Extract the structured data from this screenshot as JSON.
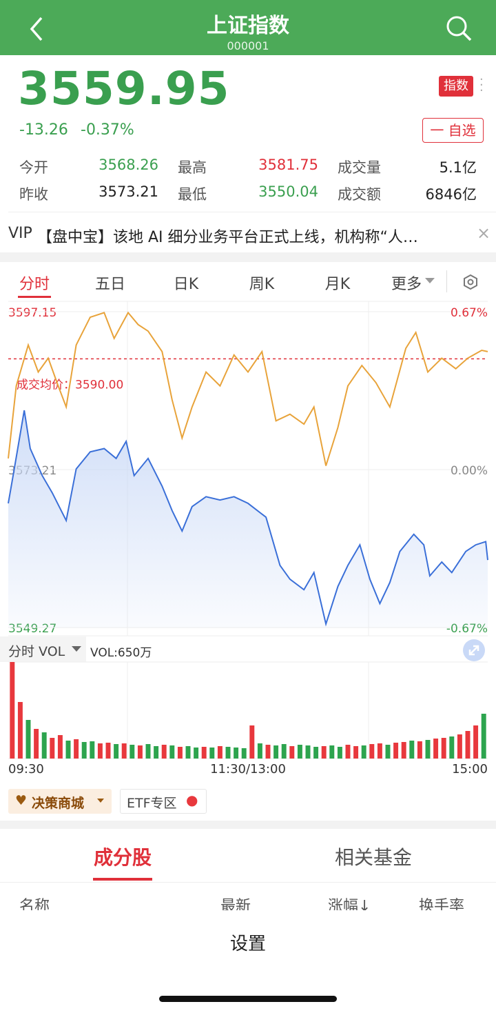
{
  "header": {
    "title": "上证指数",
    "code": "000001"
  },
  "quote": {
    "price": "3559.95",
    "change": "-13.26",
    "change_pct": "-0.37%",
    "badge": "指数",
    "watch_button": "一 自选"
  },
  "stats": [
    [
      "今开",
      "3568.26",
      "最高",
      "3581.75",
      "成交量",
      "5.1亿"
    ],
    [
      "昨收",
      "3573.21",
      "最低",
      "3550.04",
      "成交额",
      "6846亿"
    ]
  ],
  "news": {
    "tag": "VIP",
    "text": "【盘中宝】该地 AI 细分业务平台正式上线，机构称“人…"
  },
  "tabs": [
    "分时",
    "五日",
    "日K",
    "周K",
    "月K",
    "更多"
  ],
  "chart_data": {
    "type": "line",
    "series": [
      {
        "color": "#e8a33a",
        "x": [
          0,
          4,
          10,
          15,
          20,
          25,
          29,
          34,
          41,
          48,
          53,
          60,
          65,
          70,
          77,
          82,
          87,
          92,
          99,
          106,
          113,
          120,
          127,
          134,
          141,
          148,
          153,
          159,
          165,
          170,
          177,
          184,
          191,
          199,
          204,
          210,
          217,
          224,
          230,
          237,
          240
        ],
        "values": [
          3574.9,
          3585.9,
          3592.1,
          3588.0,
          3590.1,
          3585.9,
          3582.7,
          3592.1,
          3596.3,
          3597.0,
          3593.1,
          3597.0,
          3595.2,
          3594.2,
          3591.1,
          3583.8,
          3578.0,
          3582.7,
          3588.0,
          3585.9,
          3590.6,
          3588.0,
          3591.1,
          3580.6,
          3581.6,
          3580.1,
          3582.7,
          3573.8,
          3579.6,
          3585.9,
          3589.0,
          3586.4,
          3582.7,
          3591.6,
          3594.0,
          3588.0,
          3590.1,
          3588.5,
          3590.1,
          3591.3,
          3591.1
        ]
      },
      {
        "color": "#3a6fd8",
        "x": [
          0,
          3,
          8,
          11,
          17,
          22,
          29,
          34,
          41,
          48,
          54,
          59,
          63,
          70,
          77,
          82,
          87,
          92,
          99,
          106,
          113,
          120,
          129,
          136,
          141,
          148,
          153,
          159,
          165,
          170,
          176,
          181,
          186,
          191,
          196,
          203,
          208,
          211,
          217,
          222,
          229,
          234,
          239,
          240
        ],
        "values": [
          3568.1,
          3573.3,
          3582.2,
          3576.4,
          3572.3,
          3569.7,
          3565.5,
          3573.3,
          3575.9,
          3576.4,
          3574.9,
          3577.5,
          3572.3,
          3574.9,
          3570.7,
          3567.0,
          3563.9,
          3567.6,
          3569.1,
          3568.6,
          3569.1,
          3568.1,
          3566.0,
          3558.7,
          3556.6,
          3555.0,
          3557.6,
          3549.8,
          3555.5,
          3558.7,
          3561.8,
          3556.6,
          3552.9,
          3556.1,
          3560.8,
          3563.4,
          3561.8,
          3557.1,
          3559.2,
          3557.6,
          3560.8,
          3561.8,
          3562.3,
          3559.5
        ]
      }
    ],
    "xlim": [
      0,
      240
    ],
    "xticks": [
      {
        "value": 0,
        "label": "09:30"
      },
      {
        "value": 120,
        "label": "11:30/13:00"
      },
      {
        "value": 240,
        "label": "15:00"
      }
    ],
    "ylim": [
      3549.27,
      3597.15
    ],
    "yticks": [
      3597.15,
      3573.21,
      3549.27
    ],
    "y2lim": [
      -0.67,
      0.67
    ],
    "y2ticks": [
      {
        "value": 0.67,
        "label": "0.67%"
      },
      {
        "value": 0,
        "label": "0.00%"
      },
      {
        "value": -0.67,
        "label": "-0.67%"
      }
    ],
    "avg_price_label": "成交均价：",
    "avg_price": {
      "value": 3590,
      "label": "3590.00"
    }
  },
  "volume": {
    "selector": "分时 VOL",
    "label": "VOL:650万",
    "ylim": [
      0,
      1400
    ],
    "values": [
      1400,
      820,
      560,
      430,
      380,
      300,
      340,
      260,
      280,
      240,
      250,
      220,
      230,
      210,
      220,
      200,
      190,
      210,
      180,
      200,
      190,
      170,
      180,
      160,
      170,
      160,
      180,
      170,
      160,
      150,
      480,
      220,
      200,
      190,
      210,
      180,
      200,
      190,
      170,
      180,
      190,
      170,
      200,
      180,
      190,
      210,
      220,
      200,
      230,
      240,
      260,
      250,
      270,
      290,
      300,
      320,
      350,
      400,
      480,
      650
    ],
    "colors": [
      "#e8383d",
      "#e8383d",
      "#2da44e",
      "#e8383d",
      "#2da44e",
      "#e8383d",
      "#e8383d",
      "#2da44e",
      "#e8383d",
      "#2da44e",
      "#2da44e",
      "#e8383d",
      "#e8383d",
      "#2da44e",
      "#e8383d",
      "#2da44e",
      "#e8383d",
      "#2da44e",
      "#2da44e",
      "#e8383d",
      "#2da44e",
      "#e8383d",
      "#2da44e",
      "#2da44e",
      "#e8383d",
      "#2da44e",
      "#e8383d",
      "#2da44e",
      "#2da44e",
      "#2da44e",
      "#e8383d",
      "#2da44e",
      "#e8383d",
      "#2da44e",
      "#2da44e",
      "#e8383d",
      "#2da44e",
      "#2da44e",
      "#2da44e",
      "#e8383d",
      "#2da44e",
      "#2da44e",
      "#e8383d",
      "#e8383d",
      "#2da44e",
      "#e8383d",
      "#e8383d",
      "#2da44e",
      "#e8383d",
      "#e8383d",
      "#2da44e",
      "#e8383d",
      "#2da44e",
      "#e8383d",
      "#e8383d",
      "#2da44e",
      "#e8383d",
      "#e8383d",
      "#e8383d",
      "#2da44e"
    ]
  },
  "chips": [
    "决策商城",
    "ETF专区"
  ],
  "bottom_tabs": [
    "成分股",
    "相关基金"
  ],
  "table_header": [
    "名称",
    "最新",
    "涨幅↓",
    "换手率"
  ],
  "sheet": {
    "title": "设置"
  }
}
